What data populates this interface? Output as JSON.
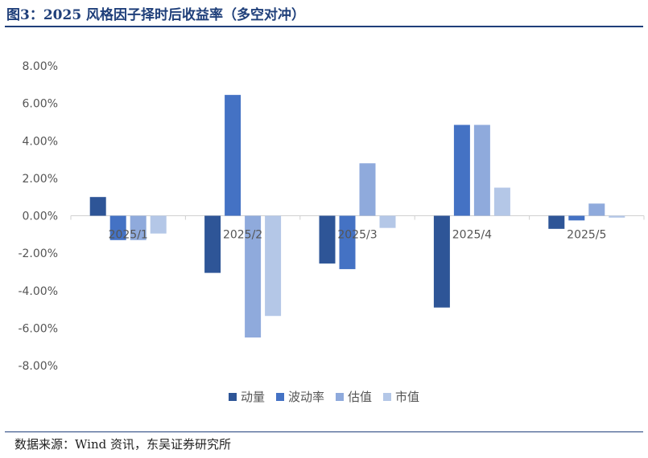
{
  "title": "图3：2025 风格因子择时后收益率（多空对冲）",
  "source": "数据来源：Wind 资讯，东吴证券研究所",
  "chart_data": {
    "type": "bar",
    "categories": [
      "2025/1",
      "2025/2",
      "2025/3",
      "2025/4",
      "2025/5"
    ],
    "series": [
      {
        "name": "动量",
        "color": "#2e5597",
        "values": [
          1.0,
          -3.05,
          -2.55,
          -4.9,
          -0.7
        ]
      },
      {
        "name": "波动率",
        "color": "#4472c4",
        "values": [
          -1.3,
          6.45,
          -2.85,
          4.85,
          -0.25
        ]
      },
      {
        "name": "估值",
        "color": "#8faadc",
        "values": [
          -1.3,
          -6.5,
          2.8,
          4.85,
          0.65
        ]
      },
      {
        "name": "市值",
        "color": "#b4c7e7",
        "values": [
          -0.95,
          -5.35,
          -0.65,
          1.5,
          -0.1
        ]
      }
    ],
    "ylim": [
      -8,
      8
    ],
    "yticks": [
      "8.00%",
      "6.00%",
      "4.00%",
      "2.00%",
      "0.00%",
      "-2.00%",
      "-4.00%",
      "-6.00%",
      "-8.00%"
    ],
    "ytick_values": [
      8,
      6,
      4,
      2,
      0,
      -2,
      -4,
      -6,
      -8
    ],
    "legend_position": "bottom",
    "grid": false
  }
}
